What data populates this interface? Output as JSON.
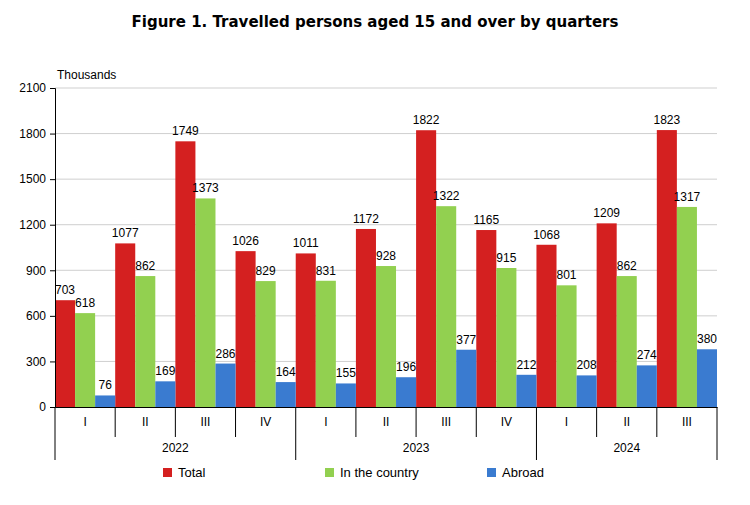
{
  "chart_data": {
    "type": "bar",
    "title": "Figure 1. Travelled persons aged 15 and over by quarters",
    "y_label": "Thousands",
    "categories": [
      "I",
      "II",
      "III",
      "IV",
      "I",
      "II",
      "III",
      "IV",
      "I",
      "II",
      "III"
    ],
    "groups": [
      "2022",
      "2022",
      "2022",
      "2022",
      "2023",
      "2023",
      "2023",
      "2023",
      "2024",
      "2024",
      "2024"
    ],
    "series": [
      {
        "name": "Total",
        "color": "#d42020",
        "values": [
          703,
          1077,
          1749,
          1026,
          1011,
          1172,
          1822,
          1165,
          1068,
          1209,
          1823
        ]
      },
      {
        "name": "In the country",
        "color": "#92d050",
        "values": [
          618,
          862,
          1373,
          829,
          831,
          928,
          1322,
          915,
          801,
          862,
          1317
        ]
      },
      {
        "name": "Abroad",
        "color": "#3a7bd0",
        "values": [
          76,
          169,
          286,
          164,
          155,
          196,
          377,
          212,
          208,
          274,
          380
        ]
      }
    ],
    "ylim": [
      0,
      2100
    ],
    "yticks": [
      0,
      300,
      600,
      900,
      1200,
      1500,
      1800,
      2100
    ],
    "grid": true,
    "data_labels": true,
    "legend": "bottom"
  }
}
